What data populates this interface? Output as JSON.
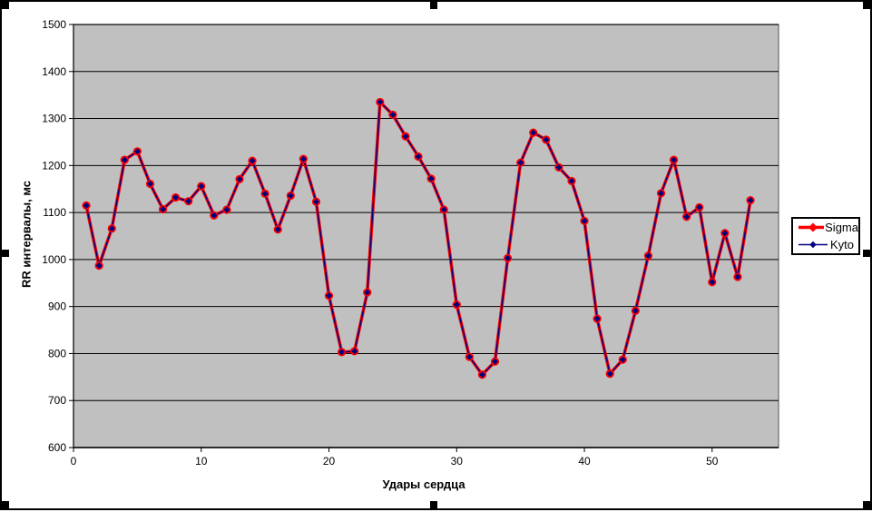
{
  "window": {
    "background": "#FFFFFF",
    "border_color": "#000000",
    "selection": {
      "selected": true,
      "handle_color": "#000000",
      "handle_count": 8
    }
  },
  "chart_data": {
    "type": "line",
    "title": "",
    "xlabel": "Удары сердца",
    "ylabel": "RR интервалы, мс",
    "x": [
      1,
      2,
      3,
      4,
      5,
      6,
      7,
      8,
      9,
      10,
      11,
      12,
      13,
      14,
      15,
      16,
      17,
      18,
      19,
      20,
      21,
      22,
      23,
      24,
      25,
      26,
      27,
      28,
      29,
      30,
      31,
      32,
      33,
      34,
      35,
      36,
      37,
      38,
      39,
      40,
      41,
      42,
      43,
      44,
      45,
      46,
      47,
      48,
      49,
      50,
      51,
      52,
      53
    ],
    "series": [
      {
        "name": "Sigma",
        "color": "#FF0000",
        "line_width": 3.5,
        "marker": "circle",
        "values": [
          1115,
          987,
          1066,
          1212,
          1230,
          1161,
          1107,
          1132,
          1124,
          1156,
          1094,
          1106,
          1171,
          1210,
          1140,
          1064,
          1136,
          1214,
          1123,
          923,
          803,
          805,
          930,
          1335,
          1308,
          1262,
          1219,
          1172,
          1106,
          904,
          793,
          755,
          783,
          1003,
          1206,
          1270,
          1255,
          1196,
          1167,
          1082,
          874,
          757,
          787,
          891,
          1008,
          1141,
          1212,
          1091,
          1111,
          952,
          1056,
          963,
          1126
        ]
      },
      {
        "name": "Kyto",
        "color": "#000080",
        "line_width": 1.4,
        "marker": "diamond",
        "values": [
          1115,
          987,
          1066,
          1212,
          1230,
          1161,
          1107,
          1132,
          1124,
          1156,
          1094,
          1106,
          1171,
          1210,
          1140,
          1064,
          1136,
          1214,
          1123,
          923,
          803,
          805,
          930,
          1335,
          1308,
          1262,
          1219,
          1172,
          1106,
          904,
          793,
          755,
          783,
          1003,
          1206,
          1270,
          1255,
          1196,
          1167,
          1082,
          874,
          757,
          787,
          891,
          1008,
          1141,
          1212,
          1091,
          1111,
          952,
          1056,
          963,
          1126
        ]
      }
    ],
    "xlim": [
      0,
      55.2
    ],
    "ylim": [
      600,
      1500
    ],
    "xticks": [
      0,
      10,
      20,
      30,
      40,
      50
    ],
    "ytick_step": 100,
    "grid": "horizontal",
    "plot_bg": "#C0C0C0",
    "plot_border": "#808080",
    "grid_color": "#000000",
    "axis_color": "#000000",
    "legend": {
      "position": "right",
      "border": "#000000",
      "bg": "#FFFFFF"
    }
  }
}
